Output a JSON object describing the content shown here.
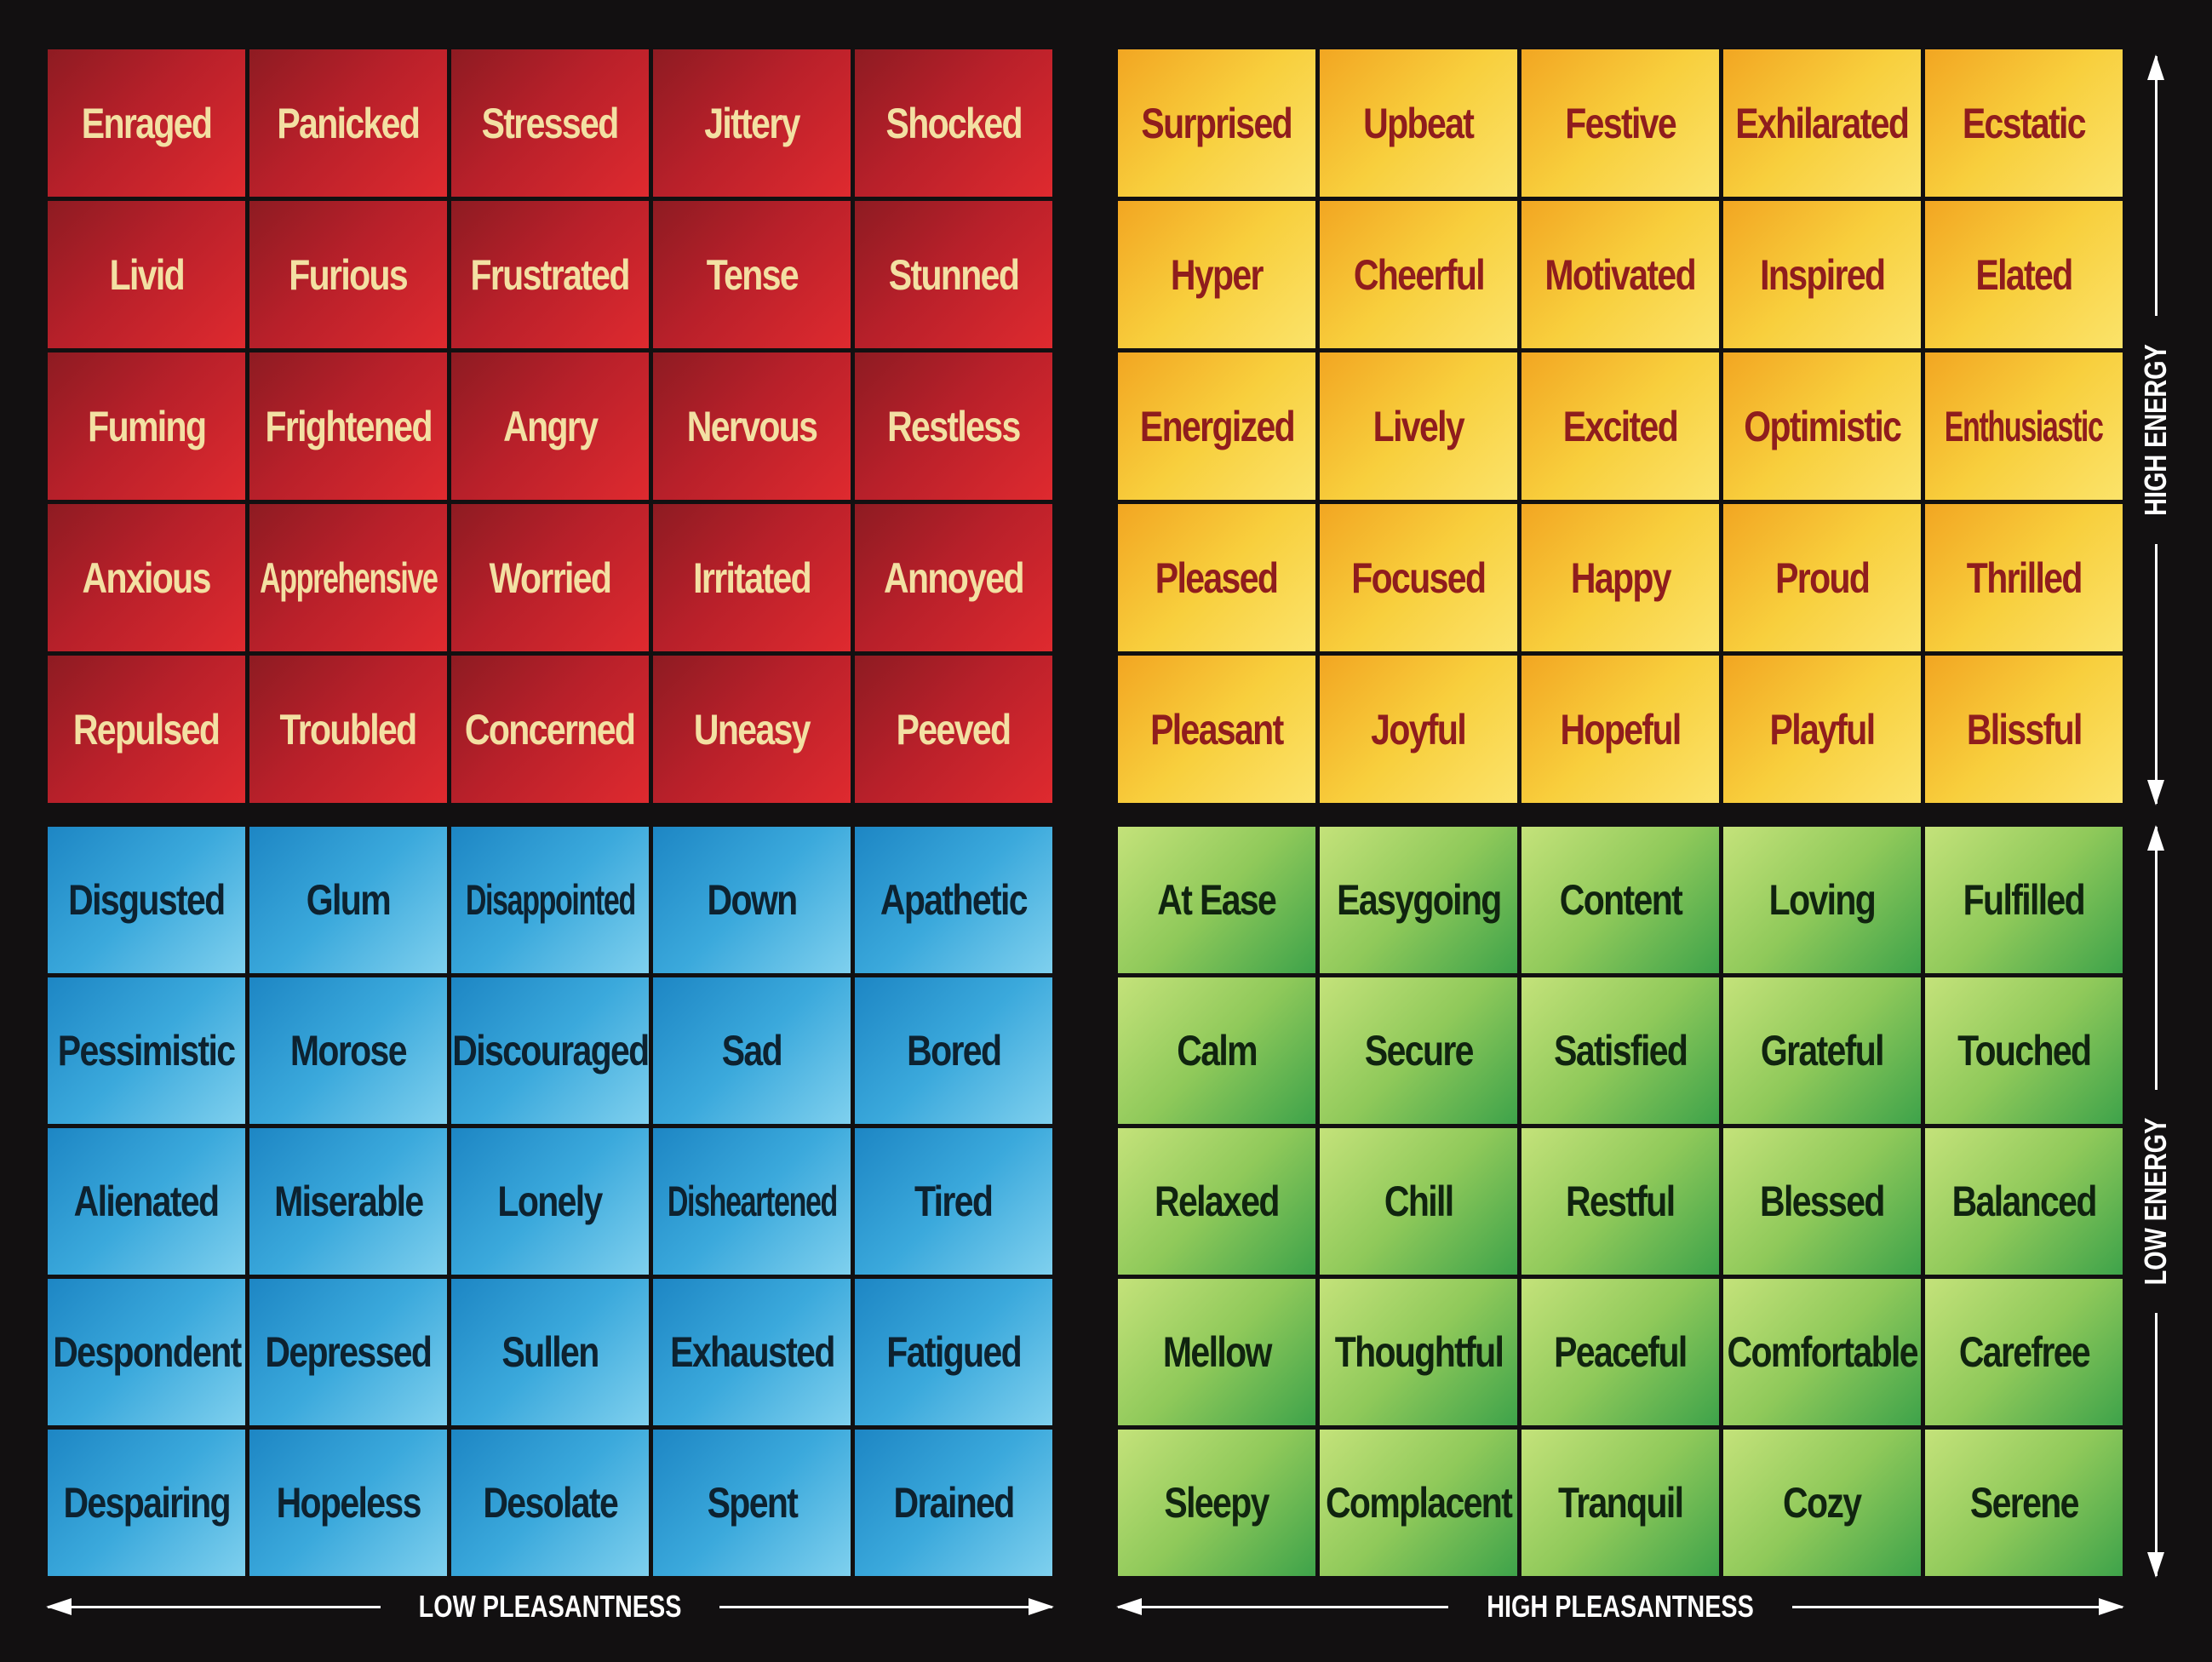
{
  "quadrants": {
    "red": {
      "color": "#c8232b",
      "words": [
        "Enraged",
        "Panicked",
        "Stressed",
        "Jittery",
        "Shocked",
        "Livid",
        "Furious",
        "Frustrated",
        "Tense",
        "Stunned",
        "Fuming",
        "Frightened",
        "Angry",
        "Nervous",
        "Restless",
        "Anxious",
        "Apprehensive",
        "Worried",
        "Irritated",
        "Annoyed",
        "Repulsed",
        "Troubled",
        "Concerned",
        "Uneasy",
        "Peeved"
      ]
    },
    "yellow": {
      "color": "#f8cf3d",
      "words": [
        "Surprised",
        "Upbeat",
        "Festive",
        "Exhilarated",
        "Ecstatic",
        "Hyper",
        "Cheerful",
        "Motivated",
        "Inspired",
        "Elated",
        "Energized",
        "Lively",
        "Excited",
        "Optimistic",
        "Enthusiastic",
        "Pleased",
        "Focused",
        "Happy",
        "Proud",
        "Thrilled",
        "Pleasant",
        "Joyful",
        "Hopeful",
        "Playful",
        "Blissful"
      ]
    },
    "blue": {
      "color": "#3ba9dc",
      "words": [
        "Disgusted",
        "Glum",
        "Disappointed",
        "Down",
        "Apathetic",
        "Pessimistic",
        "Morose",
        "Discouraged",
        "Sad",
        "Bored",
        "Alienated",
        "Miserable",
        "Lonely",
        "Disheartened",
        "Tired",
        "Despondent",
        "Depressed",
        "Sullen",
        "Exhausted",
        "Fatigued",
        "Despairing",
        "Hopeless",
        "Desolate",
        "Spent",
        "Drained"
      ]
    },
    "green": {
      "color": "#8fc95a",
      "words": [
        "At Ease",
        "Easygoing",
        "Content",
        "Loving",
        "Fulfilled",
        "Calm",
        "Secure",
        "Satisfied",
        "Grateful",
        "Touched",
        "Relaxed",
        "Chill",
        "Restful",
        "Blessed",
        "Balanced",
        "Mellow",
        "Thoughtful",
        "Peaceful",
        "Comfortable",
        "Carefree",
        "Sleepy",
        "Complacent",
        "Tranquil",
        "Cozy",
        "Serene"
      ]
    }
  },
  "axes": {
    "low_pleasantness": "LOW PLEASANTNESS",
    "high_pleasantness": "HIGH PLEASANTNESS",
    "high_energy": "HIGH ENERGY",
    "low_energy": "LOW ENERGY"
  }
}
